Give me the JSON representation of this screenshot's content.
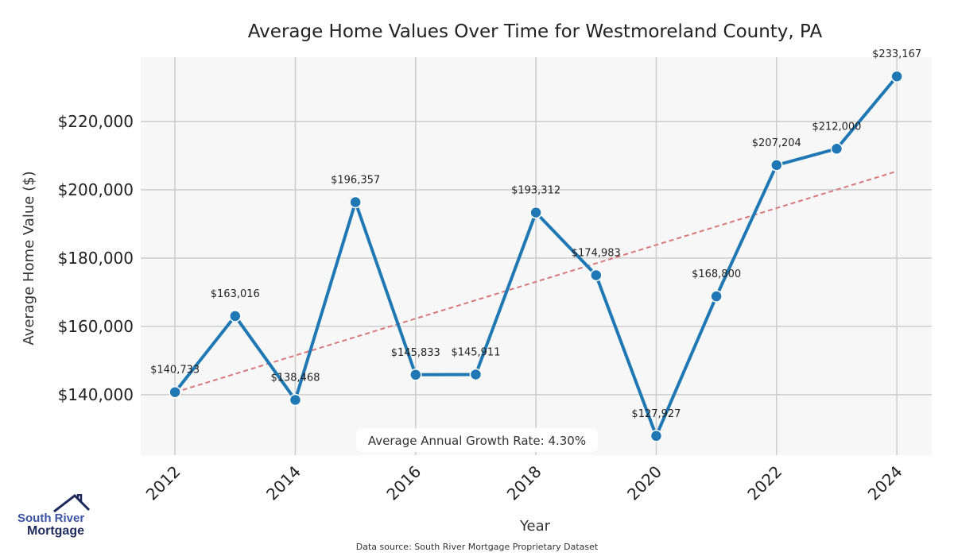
{
  "chart_data": {
    "type": "line",
    "title": "Average Home Values Over Time for Westmoreland County, PA",
    "xlabel": "Year",
    "ylabel": "Average Home Value ($)",
    "x": [
      2012,
      2013,
      2014,
      2015,
      2016,
      2017,
      2018,
      2019,
      2020,
      2021,
      2022,
      2023,
      2024
    ],
    "series": [
      {
        "name": "Average Home Value",
        "color": "#1f77b4",
        "values": [
          140733,
          163016,
          138468,
          196357,
          145833,
          145911,
          193312,
          174983,
          127927,
          168800,
          207204,
          212000,
          233167
        ],
        "labels": [
          "$140,733",
          "$163,016",
          "$138,468",
          "$196,357",
          "$145,833",
          "$145,911",
          "$193,312",
          "$174,983",
          "$127,927",
          "$168,800",
          "$207,204",
          "$212,000",
          "$233,167"
        ]
      },
      {
        "name": "Trend",
        "color": "#d9777a",
        "style": "dashed",
        "x": [
          2012,
          2024
        ],
        "values": [
          140700,
          205400
        ]
      }
    ],
    "xticks": [
      2012,
      2014,
      2016,
      2018,
      2020,
      2022,
      2024
    ],
    "xtick_labels": [
      "2012",
      "2014",
      "2016",
      "2018",
      "2020",
      "2022",
      "2024"
    ],
    "yticks": [
      140000,
      160000,
      180000,
      200000,
      220000
    ],
    "ytick_labels": [
      "$140,000",
      "$160,000",
      "$180,000",
      "$200,000",
      "$220,000"
    ],
    "xlim": [
      2011.43,
      2024.58
    ],
    "ylim": [
      122300,
      238800
    ],
    "grid": true,
    "annotation": "Average Annual Growth Rate: 4.30%",
    "source": "Data source: South River Mortgage Proprietary Dataset"
  },
  "logo": {
    "line1": "South River",
    "line2": "Mortgage"
  }
}
